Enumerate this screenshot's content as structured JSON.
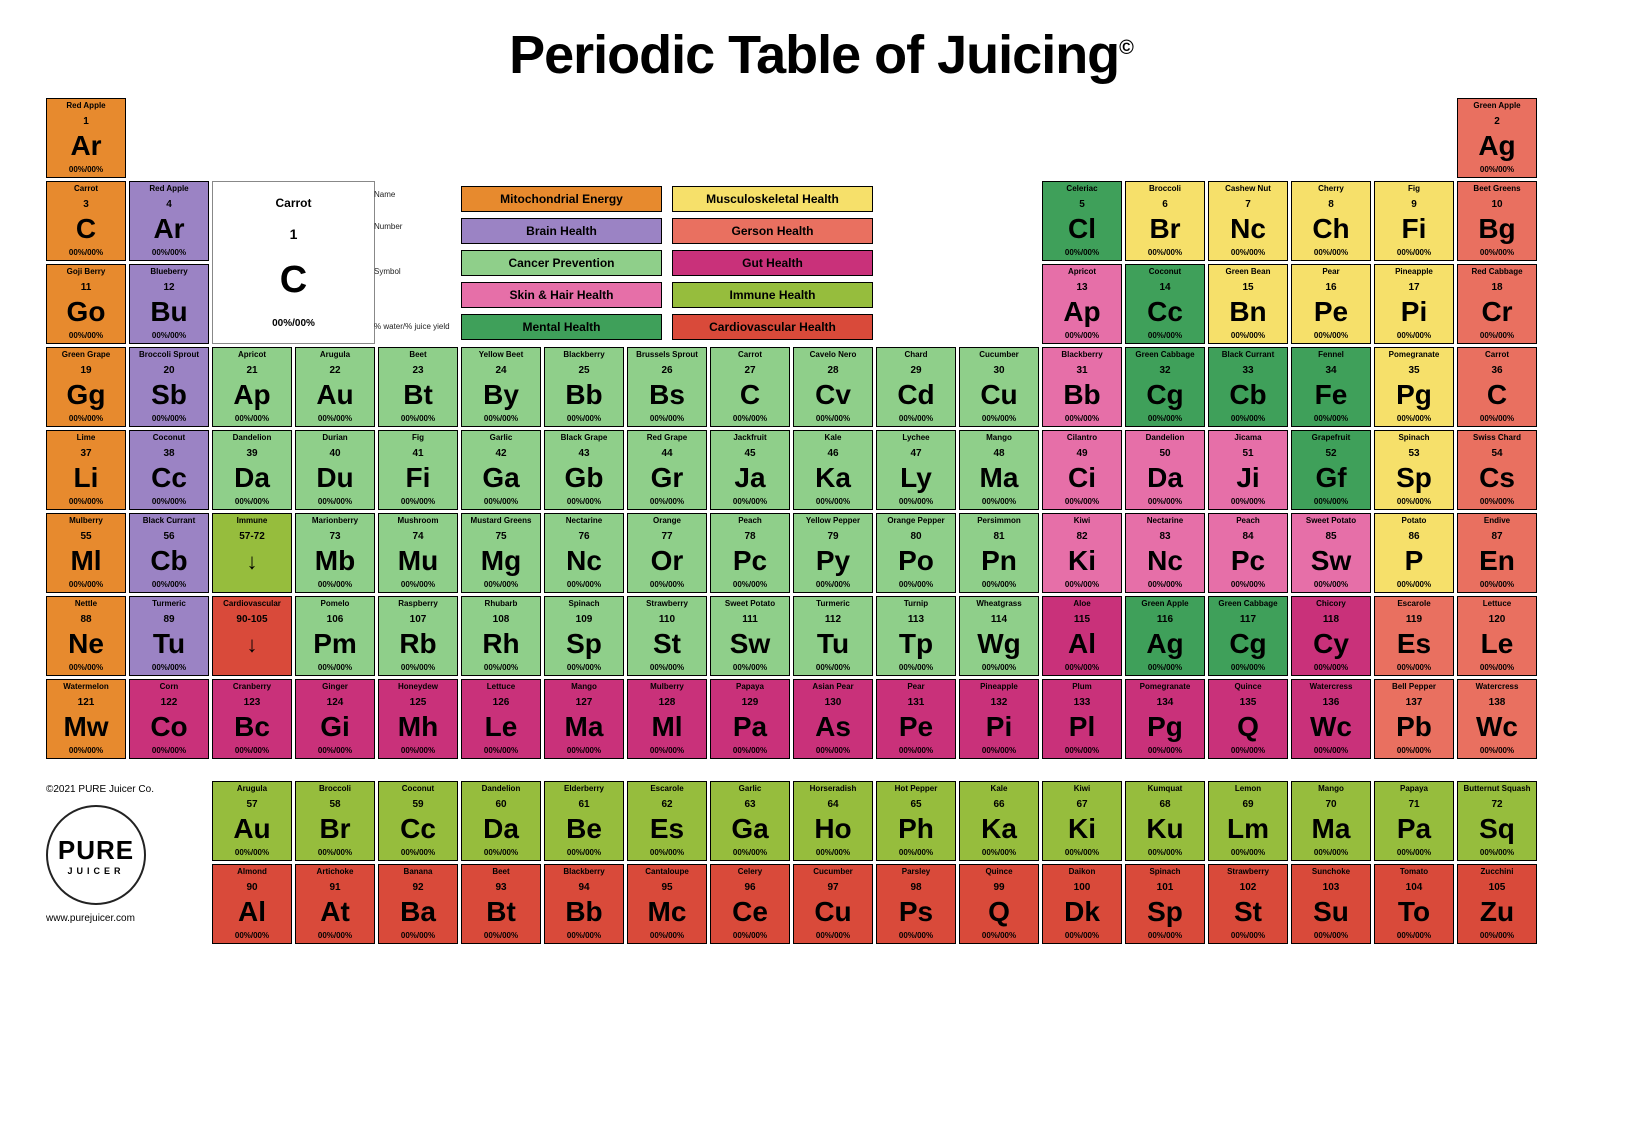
{
  "title": "Periodic Table of Juicing",
  "copyright": "©2021 PURE Juicer Co.",
  "url": "www.purejuicer.com",
  "logo_top": "PURE",
  "logo_bottom": "JUICER",
  "pct_placeholder": "00%/00%",
  "colors": {
    "mito": "#e78a2e",
    "brain": "#9b83c4",
    "cancer": "#8fcf8a",
    "skin": "#e66fa8",
    "mental": "#3fa05a",
    "musc": "#f6e06a",
    "gerson": "#e97060",
    "gut": "#c9317a",
    "immune": "#96bd3d",
    "cardio": "#d94a3a"
  },
  "key": {
    "name": "Carrot",
    "num": "1",
    "sym": "C",
    "pct": "00%/00%",
    "lbl_name": "Name",
    "lbl_num": "Number",
    "lbl_sym": "Symbol",
    "lbl_pct": "% water/% juice yield"
  },
  "legend": [
    {
      "label": "Mitochondrial Energy",
      "color": "mito"
    },
    {
      "label": "Musculoskeletal Health",
      "color": "musc"
    },
    {
      "label": "Brain Health",
      "color": "brain"
    },
    {
      "label": "Gerson Health",
      "color": "gerson"
    },
    {
      "label": "Cancer Prevention",
      "color": "cancer"
    },
    {
      "label": "Gut Health",
      "color": "gut"
    },
    {
      "label": "Skin & Hair Health",
      "color": "skin"
    },
    {
      "label": "Immune Health",
      "color": "immune"
    },
    {
      "label": "Mental Health",
      "color": "mental"
    },
    {
      "label": "Cardiovascular Health",
      "color": "cardio"
    }
  ],
  "main": [
    {
      "r": 1,
      "c": 1,
      "num": 1,
      "name": "Red Apple",
      "sym": "Ar",
      "color": "mito"
    },
    {
      "r": 1,
      "c": 18,
      "num": 2,
      "name": "Green Apple",
      "sym": "Ag",
      "color": "gerson"
    },
    {
      "r": 2,
      "c": 1,
      "num": 3,
      "name": "Carrot",
      "sym": "C",
      "color": "mito"
    },
    {
      "r": 2,
      "c": 2,
      "num": 4,
      "name": "Red Apple",
      "sym": "Ar",
      "color": "brain"
    },
    {
      "r": 2,
      "c": 13,
      "num": 5,
      "name": "Celeriac",
      "sym": "Cl",
      "color": "mental"
    },
    {
      "r": 2,
      "c": 14,
      "num": 6,
      "name": "Broccoli",
      "sym": "Br",
      "color": "musc"
    },
    {
      "r": 2,
      "c": 15,
      "num": 7,
      "name": "Cashew Nut",
      "sym": "Nc",
      "color": "musc"
    },
    {
      "r": 2,
      "c": 16,
      "num": 8,
      "name": "Cherry",
      "sym": "Ch",
      "color": "musc"
    },
    {
      "r": 2,
      "c": 17,
      "num": 9,
      "name": "Fig",
      "sym": "Fi",
      "color": "musc"
    },
    {
      "r": 2,
      "c": 18,
      "num": 10,
      "name": "Beet Greens",
      "sym": "Bg",
      "color": "gerson"
    },
    {
      "r": 3,
      "c": 1,
      "num": 11,
      "name": "Goji Berry",
      "sym": "Go",
      "color": "mito"
    },
    {
      "r": 3,
      "c": 2,
      "num": 12,
      "name": "Blueberry",
      "sym": "Bu",
      "color": "brain"
    },
    {
      "r": 3,
      "c": 13,
      "num": 13,
      "name": "Apricot",
      "sym": "Ap",
      "color": "skin"
    },
    {
      "r": 3,
      "c": 14,
      "num": 14,
      "name": "Coconut",
      "sym": "Cc",
      "color": "mental"
    },
    {
      "r": 3,
      "c": 15,
      "num": 15,
      "name": "Green Bean",
      "sym": "Bn",
      "color": "musc"
    },
    {
      "r": 3,
      "c": 16,
      "num": 16,
      "name": "Pear",
      "sym": "Pe",
      "color": "musc"
    },
    {
      "r": 3,
      "c": 17,
      "num": 17,
      "name": "Pineapple",
      "sym": "Pi",
      "color": "musc"
    },
    {
      "r": 3,
      "c": 18,
      "num": 18,
      "name": "Red Cabbage",
      "sym": "Cr",
      "color": "gerson"
    },
    {
      "r": 4,
      "c": 1,
      "num": 19,
      "name": "Green Grape",
      "sym": "Gg",
      "color": "mito"
    },
    {
      "r": 4,
      "c": 2,
      "num": 20,
      "name": "Broccoli Sprout",
      "sym": "Sb",
      "color": "brain"
    },
    {
      "r": 4,
      "c": 3,
      "num": 21,
      "name": "Apricot",
      "sym": "Ap",
      "color": "cancer"
    },
    {
      "r": 4,
      "c": 4,
      "num": 22,
      "name": "Arugula",
      "sym": "Au",
      "color": "cancer"
    },
    {
      "r": 4,
      "c": 5,
      "num": 23,
      "name": "Beet",
      "sym": "Bt",
      "color": "cancer"
    },
    {
      "r": 4,
      "c": 6,
      "num": 24,
      "name": "Yellow Beet",
      "sym": "By",
      "color": "cancer"
    },
    {
      "r": 4,
      "c": 7,
      "num": 25,
      "name": "Blackberry",
      "sym": "Bb",
      "color": "cancer"
    },
    {
      "r": 4,
      "c": 8,
      "num": 26,
      "name": "Brussels Sprout",
      "sym": "Bs",
      "color": "cancer"
    },
    {
      "r": 4,
      "c": 9,
      "num": 27,
      "name": "Carrot",
      "sym": "C",
      "color": "cancer"
    },
    {
      "r": 4,
      "c": 10,
      "num": 28,
      "name": "Cavelo Nero",
      "sym": "Cv",
      "color": "cancer"
    },
    {
      "r": 4,
      "c": 11,
      "num": 29,
      "name": "Chard",
      "sym": "Cd",
      "color": "cancer"
    },
    {
      "r": 4,
      "c": 12,
      "num": 30,
      "name": "Cucumber",
      "sym": "Cu",
      "color": "cancer"
    },
    {
      "r": 4,
      "c": 13,
      "num": 31,
      "name": "Blackberry",
      "sym": "Bb",
      "color": "skin"
    },
    {
      "r": 4,
      "c": 14,
      "num": 32,
      "name": "Green Cabbage",
      "sym": "Cg",
      "color": "mental"
    },
    {
      "r": 4,
      "c": 15,
      "num": 33,
      "name": "Black Currant",
      "sym": "Cb",
      "color": "mental"
    },
    {
      "r": 4,
      "c": 16,
      "num": 34,
      "name": "Fennel",
      "sym": "Fe",
      "color": "mental"
    },
    {
      "r": 4,
      "c": 17,
      "num": 35,
      "name": "Pomegranate",
      "sym": "Pg",
      "color": "musc"
    },
    {
      "r": 4,
      "c": 18,
      "num": 36,
      "name": "Carrot",
      "sym": "C",
      "color": "gerson"
    },
    {
      "r": 5,
      "c": 1,
      "num": 37,
      "name": "Lime",
      "sym": "Li",
      "color": "mito"
    },
    {
      "r": 5,
      "c": 2,
      "num": 38,
      "name": "Coconut",
      "sym": "Cc",
      "color": "brain"
    },
    {
      "r": 5,
      "c": 3,
      "num": 39,
      "name": "Dandelion",
      "sym": "Da",
      "color": "cancer"
    },
    {
      "r": 5,
      "c": 4,
      "num": 40,
      "name": "Durian",
      "sym": "Du",
      "color": "cancer"
    },
    {
      "r": 5,
      "c": 5,
      "num": 41,
      "name": "Fig",
      "sym": "Fi",
      "color": "cancer"
    },
    {
      "r": 5,
      "c": 6,
      "num": 42,
      "name": "Garlic",
      "sym": "Ga",
      "color": "cancer"
    },
    {
      "r": 5,
      "c": 7,
      "num": 43,
      "name": "Black Grape",
      "sym": "Gb",
      "color": "cancer"
    },
    {
      "r": 5,
      "c": 8,
      "num": 44,
      "name": "Red Grape",
      "sym": "Gr",
      "color": "cancer"
    },
    {
      "r": 5,
      "c": 9,
      "num": 45,
      "name": "Jackfruit",
      "sym": "Ja",
      "color": "cancer"
    },
    {
      "r": 5,
      "c": 10,
      "num": 46,
      "name": "Kale",
      "sym": "Ka",
      "color": "cancer"
    },
    {
      "r": 5,
      "c": 11,
      "num": 47,
      "name": "Lychee",
      "sym": "Ly",
      "color": "cancer"
    },
    {
      "r": 5,
      "c": 12,
      "num": 48,
      "name": "Mango",
      "sym": "Ma",
      "color": "cancer"
    },
    {
      "r": 5,
      "c": 13,
      "num": 49,
      "name": "Cilantro",
      "sym": "Ci",
      "color": "skin"
    },
    {
      "r": 5,
      "c": 14,
      "num": 50,
      "name": "Dandelion",
      "sym": "Da",
      "color": "skin"
    },
    {
      "r": 5,
      "c": 15,
      "num": 51,
      "name": "Jicama",
      "sym": "Ji",
      "color": "skin"
    },
    {
      "r": 5,
      "c": 16,
      "num": 52,
      "name": "Grapefruit",
      "sym": "Gf",
      "color": "mental"
    },
    {
      "r": 5,
      "c": 17,
      "num": 53,
      "name": "Spinach",
      "sym": "Sp",
      "color": "musc"
    },
    {
      "r": 5,
      "c": 18,
      "num": 54,
      "name": "Swiss Chard",
      "sym": "Cs",
      "color": "gerson"
    },
    {
      "r": 6,
      "c": 1,
      "num": 55,
      "name": "Mulberry",
      "sym": "Ml",
      "color": "mito"
    },
    {
      "r": 6,
      "c": 2,
      "num": 56,
      "name": "Black Currant",
      "sym": "Cb",
      "color": "brain"
    },
    {
      "r": 6,
      "c": 3,
      "range": "57-72",
      "name": "Immune",
      "arrow": true,
      "color": "immune"
    },
    {
      "r": 6,
      "c": 4,
      "num": 73,
      "name": "Marionberry",
      "sym": "Mb",
      "color": "cancer"
    },
    {
      "r": 6,
      "c": 5,
      "num": 74,
      "name": "Mushroom",
      "sym": "Mu",
      "color": "cancer"
    },
    {
      "r": 6,
      "c": 6,
      "num": 75,
      "name": "Mustard Greens",
      "sym": "Mg",
      "color": "cancer"
    },
    {
      "r": 6,
      "c": 7,
      "num": 76,
      "name": "Nectarine",
      "sym": "Nc",
      "color": "cancer"
    },
    {
      "r": 6,
      "c": 8,
      "num": 77,
      "name": "Orange",
      "sym": "Or",
      "color": "cancer"
    },
    {
      "r": 6,
      "c": 9,
      "num": 78,
      "name": "Peach",
      "sym": "Pc",
      "color": "cancer"
    },
    {
      "r": 6,
      "c": 10,
      "num": 79,
      "name": "Yellow Pepper",
      "sym": "Py",
      "color": "cancer"
    },
    {
      "r": 6,
      "c": 11,
      "num": 80,
      "name": "Orange Pepper",
      "sym": "Po",
      "color": "cancer"
    },
    {
      "r": 6,
      "c": 12,
      "num": 81,
      "name": "Persimmon",
      "sym": "Pn",
      "color": "cancer"
    },
    {
      "r": 6,
      "c": 13,
      "num": 82,
      "name": "Kiwi",
      "sym": "Ki",
      "color": "skin"
    },
    {
      "r": 6,
      "c": 14,
      "num": 83,
      "name": "Nectarine",
      "sym": "Nc",
      "color": "skin"
    },
    {
      "r": 6,
      "c": 15,
      "num": 84,
      "name": "Peach",
      "sym": "Pc",
      "color": "skin"
    },
    {
      "r": 6,
      "c": 16,
      "num": 85,
      "name": "Sweet Potato",
      "sym": "Sw",
      "color": "skin"
    },
    {
      "r": 6,
      "c": 17,
      "num": 86,
      "name": "Potato",
      "sym": "P",
      "color": "musc"
    },
    {
      "r": 6,
      "c": 18,
      "num": 87,
      "name": "Endive",
      "sym": "En",
      "color": "gerson"
    },
    {
      "r": 7,
      "c": 1,
      "num": 88,
      "name": "Nettle",
      "sym": "Ne",
      "color": "mito"
    },
    {
      "r": 7,
      "c": 2,
      "num": 89,
      "name": "Turmeric",
      "sym": "Tu",
      "color": "brain"
    },
    {
      "r": 7,
      "c": 3,
      "range": "90-105",
      "name": "Cardiovascular",
      "arrow": true,
      "color": "cardio"
    },
    {
      "r": 7,
      "c": 4,
      "num": 106,
      "name": "Pomelo",
      "sym": "Pm",
      "color": "cancer"
    },
    {
      "r": 7,
      "c": 5,
      "num": 107,
      "name": "Raspberry",
      "sym": "Rb",
      "color": "cancer"
    },
    {
      "r": 7,
      "c": 6,
      "num": 108,
      "name": "Rhubarb",
      "sym": "Rh",
      "color": "cancer"
    },
    {
      "r": 7,
      "c": 7,
      "num": 109,
      "name": "Spinach",
      "sym": "Sp",
      "color": "cancer"
    },
    {
      "r": 7,
      "c": 8,
      "num": 110,
      "name": "Strawberry",
      "sym": "St",
      "color": "cancer"
    },
    {
      "r": 7,
      "c": 9,
      "num": 111,
      "name": "Sweet Potato",
      "sym": "Sw",
      "color": "cancer"
    },
    {
      "r": 7,
      "c": 10,
      "num": 112,
      "name": "Turmeric",
      "sym": "Tu",
      "color": "cancer"
    },
    {
      "r": 7,
      "c": 11,
      "num": 113,
      "name": "Turnip",
      "sym": "Tp",
      "color": "cancer"
    },
    {
      "r": 7,
      "c": 12,
      "num": 114,
      "name": "Wheatgrass",
      "sym": "Wg",
      "color": "cancer"
    },
    {
      "r": 7,
      "c": 13,
      "num": 115,
      "name": "Aloe",
      "sym": "Al",
      "color": "gut"
    },
    {
      "r": 7,
      "c": 14,
      "num": 116,
      "name": "Green Apple",
      "sym": "Ag",
      "color": "mental"
    },
    {
      "r": 7,
      "c": 15,
      "num": 117,
      "name": "Green Cabbage",
      "sym": "Cg",
      "color": "mental"
    },
    {
      "r": 7,
      "c": 16,
      "num": 118,
      "name": "Chicory",
      "sym": "Cy",
      "color": "gut"
    },
    {
      "r": 7,
      "c": 17,
      "num": 119,
      "name": "Escarole",
      "sym": "Es",
      "color": "gerson"
    },
    {
      "r": 7,
      "c": 18,
      "num": 120,
      "name": "Lettuce",
      "sym": "Le",
      "color": "gerson"
    },
    {
      "r": 8,
      "c": 1,
      "num": 121,
      "name": "Watermelon",
      "sym": "Mw",
      "color": "mito"
    },
    {
      "r": 8,
      "c": 2,
      "num": 122,
      "name": "Corn",
      "sym": "Co",
      "color": "gut"
    },
    {
      "r": 8,
      "c": 3,
      "num": 123,
      "name": "Cranberry",
      "sym": "Bc",
      "color": "gut"
    },
    {
      "r": 8,
      "c": 4,
      "num": 124,
      "name": "Ginger",
      "sym": "Gi",
      "color": "gut"
    },
    {
      "r": 8,
      "c": 5,
      "num": 125,
      "name": "Honeydew",
      "sym": "Mh",
      "color": "gut"
    },
    {
      "r": 8,
      "c": 6,
      "num": 126,
      "name": "Lettuce",
      "sym": "Le",
      "color": "gut"
    },
    {
      "r": 8,
      "c": 7,
      "num": 127,
      "name": "Mango",
      "sym": "Ma",
      "color": "gut"
    },
    {
      "r": 8,
      "c": 8,
      "num": 128,
      "name": "Mulberry",
      "sym": "Ml",
      "color": "gut"
    },
    {
      "r": 8,
      "c": 9,
      "num": 129,
      "name": "Papaya",
      "sym": "Pa",
      "color": "gut"
    },
    {
      "r": 8,
      "c": 10,
      "num": 130,
      "name": "Asian Pear",
      "sym": "As",
      "color": "gut"
    },
    {
      "r": 8,
      "c": 11,
      "num": 131,
      "name": "Pear",
      "sym": "Pe",
      "color": "gut"
    },
    {
      "r": 8,
      "c": 12,
      "num": 132,
      "name": "Pineapple",
      "sym": "Pi",
      "color": "gut"
    },
    {
      "r": 8,
      "c": 13,
      "num": 133,
      "name": "Plum",
      "sym": "Pl",
      "color": "gut"
    },
    {
      "r": 8,
      "c": 14,
      "num": 134,
      "name": "Pomegranate",
      "sym": "Pg",
      "color": "gut"
    },
    {
      "r": 8,
      "c": 15,
      "num": 135,
      "name": "Quince",
      "sym": "Q",
      "color": "gut"
    },
    {
      "r": 8,
      "c": 16,
      "num": 136,
      "name": "Watercress",
      "sym": "Wc",
      "color": "gut"
    },
    {
      "r": 8,
      "c": 17,
      "num": 137,
      "name": "Bell Pepper",
      "sym": "Pb",
      "color": "gerson"
    },
    {
      "r": 8,
      "c": 18,
      "num": 138,
      "name": "Watercress",
      "sym": "Wc",
      "color": "gerson"
    }
  ],
  "footer": [
    {
      "r": 1,
      "c": 1,
      "num": 57,
      "name": "Arugula",
      "sym": "Au",
      "color": "immune"
    },
    {
      "r": 1,
      "c": 2,
      "num": 58,
      "name": "Broccoli",
      "sym": "Br",
      "color": "immune"
    },
    {
      "r": 1,
      "c": 3,
      "num": 59,
      "name": "Coconut",
      "sym": "Cc",
      "color": "immune"
    },
    {
      "r": 1,
      "c": 4,
      "num": 60,
      "name": "Dandelion",
      "sym": "Da",
      "color": "immune"
    },
    {
      "r": 1,
      "c": 5,
      "num": 61,
      "name": "Elderberry",
      "sym": "Be",
      "color": "immune"
    },
    {
      "r": 1,
      "c": 6,
      "num": 62,
      "name": "Escarole",
      "sym": "Es",
      "color": "immune"
    },
    {
      "r": 1,
      "c": 7,
      "num": 63,
      "name": "Garlic",
      "sym": "Ga",
      "color": "immune"
    },
    {
      "r": 1,
      "c": 8,
      "num": 64,
      "name": "Horseradish",
      "sym": "Ho",
      "color": "immune"
    },
    {
      "r": 1,
      "c": 9,
      "num": 65,
      "name": "Hot Pepper",
      "sym": "Ph",
      "color": "immune"
    },
    {
      "r": 1,
      "c": 10,
      "num": 66,
      "name": "Kale",
      "sym": "Ka",
      "color": "immune"
    },
    {
      "r": 1,
      "c": 11,
      "num": 67,
      "name": "Kiwi",
      "sym": "Ki",
      "color": "immune"
    },
    {
      "r": 1,
      "c": 12,
      "num": 68,
      "name": "Kumquat",
      "sym": "Ku",
      "color": "immune"
    },
    {
      "r": 1,
      "c": 13,
      "num": 69,
      "name": "Lemon",
      "sym": "Lm",
      "color": "immune"
    },
    {
      "r": 1,
      "c": 14,
      "num": 70,
      "name": "Mango",
      "sym": "Ma",
      "color": "immune"
    },
    {
      "r": 1,
      "c": 15,
      "num": 71,
      "name": "Papaya",
      "sym": "Pa",
      "color": "immune"
    },
    {
      "r": 1,
      "c": 16,
      "num": 72,
      "name": "Butternut Squash",
      "sym": "Sq",
      "color": "immune"
    },
    {
      "r": 2,
      "c": 1,
      "num": 90,
      "name": "Almond",
      "sym": "Al",
      "color": "cardio"
    },
    {
      "r": 2,
      "c": 2,
      "num": 91,
      "name": "Artichoke",
      "sym": "At",
      "color": "cardio"
    },
    {
      "r": 2,
      "c": 3,
      "num": 92,
      "name": "Banana",
      "sym": "Ba",
      "color": "cardio"
    },
    {
      "r": 2,
      "c": 4,
      "num": 93,
      "name": "Beet",
      "sym": "Bt",
      "color": "cardio"
    },
    {
      "r": 2,
      "c": 5,
      "num": 94,
      "name": "Blackberry",
      "sym": "Bb",
      "color": "cardio"
    },
    {
      "r": 2,
      "c": 6,
      "num": 95,
      "name": "Cantaloupe",
      "sym": "Mc",
      "color": "cardio"
    },
    {
      "r": 2,
      "c": 7,
      "num": 96,
      "name": "Celery",
      "sym": "Ce",
      "color": "cardio"
    },
    {
      "r": 2,
      "c": 8,
      "num": 97,
      "name": "Cucumber",
      "sym": "Cu",
      "color": "cardio"
    },
    {
      "r": 2,
      "c": 9,
      "num": 98,
      "name": "Parsley",
      "sym": "Ps",
      "color": "cardio"
    },
    {
      "r": 2,
      "c": 10,
      "num": 99,
      "name": "Quince",
      "sym": "Q",
      "color": "cardio"
    },
    {
      "r": 2,
      "c": 11,
      "num": 100,
      "name": "Daikon",
      "sym": "Dk",
      "color": "cardio"
    },
    {
      "r": 2,
      "c": 12,
      "num": 101,
      "name": "Spinach",
      "sym": "Sp",
      "color": "cardio"
    },
    {
      "r": 2,
      "c": 13,
      "num": 102,
      "name": "Strawberry",
      "sym": "St",
      "color": "cardio"
    },
    {
      "r": 2,
      "c": 14,
      "num": 103,
      "name": "Sunchoke",
      "sym": "Su",
      "color": "cardio"
    },
    {
      "r": 2,
      "c": 15,
      "num": 104,
      "name": "Tomato",
      "sym": "To",
      "color": "cardio"
    },
    {
      "r": 2,
      "c": 16,
      "num": 105,
      "name": "Zucchini",
      "sym": "Zu",
      "color": "cardio"
    }
  ]
}
